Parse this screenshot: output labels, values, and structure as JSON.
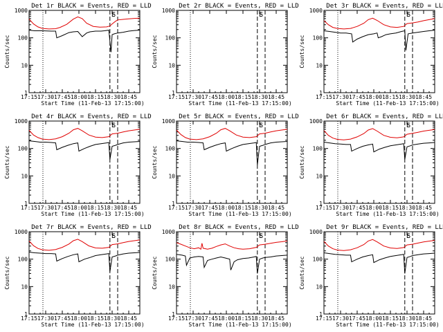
{
  "chart_data": {
    "type": "line",
    "xlabel": "Start Time (11-Feb-13 17:15:00)",
    "ylabel": "Counts/sec",
    "x_unit": "minutes after 17:15",
    "x_ticks": [
      0,
      15,
      30,
      45,
      60,
      75,
      90
    ],
    "x_tick_labels": [
      "17:15",
      "17:30",
      "17:45",
      "18:00",
      "18:15",
      "18:30",
      "18:45"
    ],
    "xlim": [
      0,
      100
    ],
    "y_scale": "log",
    "ylim": [
      1,
      1000
    ],
    "y_ticks": [
      1,
      10,
      100,
      1000
    ],
    "y_tick_labels": [
      "1",
      "10",
      "100",
      "1000"
    ],
    "line_colors": {
      "events": "#000000",
      "lld": "#e00000"
    },
    "markers": {
      "dotted_x": 12.5,
      "dashed_x": [
        73,
        80
      ],
      "labels": [
        "S",
        "E"
      ]
    },
    "panels": [
      {
        "title": "Det 1r BLACK = Events, RED = LLD",
        "series": [
          {
            "x": [
              0,
              5,
              8,
              12,
              20,
              24,
              25,
              30,
              36,
              40,
              44,
              48,
              52,
              55,
              60,
              65,
              68,
              72,
              74,
              75,
              77,
              80,
              85,
              90,
              95,
              100
            ],
            "y": [
              190,
              180,
              180,
              180,
              175,
              175,
              100,
              120,
              155,
              165,
              170,
              110,
              150,
              165,
              175,
              175,
              180,
              190,
              30,
              130,
              140,
              150,
              160,
              175,
              185,
              190
            ]
          },
          {
            "x": [
              0,
              4,
              8,
              12,
              18,
              24,
              28,
              34,
              40,
              44,
              48,
              52,
              58,
              64,
              70,
              73,
              75,
              78,
              80,
              85,
              90,
              95,
              100
            ],
            "y": [
              480,
              320,
              250,
              220,
              210,
              215,
              240,
              310,
              480,
              580,
              500,
              340,
              260,
              245,
              250,
              270,
              320,
              400,
              450,
              470,
              490,
              510,
              520
            ]
          }
        ]
      },
      {
        "title": "Det 2r BLACK = Events, RED = LLD",
        "series": [
          {
            "x": [],
            "y": []
          },
          {
            "x": [],
            "y": []
          }
        ]
      },
      {
        "title": "Det 3r BLACK = Events, RED = LLD",
        "series": [
          {
            "x": [
              0,
              5,
              10,
              15,
              20,
              25,
              26,
              30,
              35,
              40,
              45,
              48,
              49,
              52,
              56,
              60,
              65,
              70,
              73,
              74,
              76,
              80,
              85,
              90,
              95,
              100
            ],
            "y": [
              180,
              170,
              160,
              150,
              150,
              140,
              70,
              90,
              110,
              130,
              140,
              150,
              100,
              110,
              130,
              140,
              150,
              170,
              180,
              35,
              140,
              150,
              160,
              170,
              180,
              190
            ]
          },
          {
            "x": [
              0,
              4,
              8,
              12,
              18,
              24,
              30,
              36,
              40,
              44,
              48,
              54,
              60,
              66,
              72,
              75,
              80,
              85,
              90,
              95,
              100
            ],
            "y": [
              420,
              300,
              240,
              220,
              210,
              220,
              260,
              340,
              460,
              520,
              430,
              300,
              250,
              240,
              260,
              330,
              350,
              380,
              420,
              460,
              500
            ]
          }
        ]
      },
      {
        "title": "Det 4r BLACK = Events, RED = LLD",
        "series": [
          {
            "x": [
              0,
              5,
              10,
              15,
              20,
              24,
              25,
              30,
              35,
              40,
              44,
              45,
              50,
              55,
              60,
              65,
              70,
              72,
              73,
              75,
              78,
              80,
              85,
              90,
              95,
              100
            ],
            "y": [
              190,
              180,
              170,
              170,
              165,
              160,
              90,
              110,
              130,
              150,
              160,
              80,
              100,
              120,
              140,
              150,
              160,
              165,
              40,
              120,
              130,
              140,
              160,
              170,
              175,
              180
            ]
          },
          {
            "x": [
              0,
              4,
              8,
              12,
              18,
              24,
              30,
              36,
              40,
              44,
              48,
              54,
              60,
              66,
              72,
              75,
              80,
              85,
              90,
              95,
              100
            ],
            "y": [
              460,
              310,
              250,
              220,
              210,
              225,
              270,
              360,
              480,
              540,
              440,
              310,
              260,
              250,
              270,
              340,
              360,
              400,
              440,
              470,
              500
            ]
          }
        ]
      },
      {
        "title": "Det 5r BLACK = Events, RED = LLD",
        "series": [
          {
            "x": [
              0,
              5,
              10,
              15,
              20,
              24,
              25,
              30,
              35,
              40,
              44,
              45,
              50,
              55,
              60,
              65,
              70,
              72,
              73,
              75,
              78,
              80,
              85,
              90,
              95,
              100
            ],
            "y": [
              190,
              180,
              170,
              170,
              165,
              160,
              90,
              110,
              130,
              150,
              160,
              80,
              100,
              120,
              140,
              150,
              160,
              165,
              25,
              120,
              130,
              140,
              160,
              170,
              175,
              180
            ]
          },
          {
            "x": [
              0,
              4,
              8,
              12,
              18,
              24,
              30,
              36,
              40,
              44,
              48,
              54,
              60,
              66,
              72,
              75,
              80,
              85,
              90,
              95,
              100
            ],
            "y": [
              470,
              320,
              250,
              220,
              210,
              225,
              270,
              360,
              480,
              540,
              440,
              310,
              260,
              250,
              270,
              340,
              360,
              400,
              440,
              470,
              500
            ]
          }
        ]
      },
      {
        "title": "Det 6r BLACK = Events, RED = LLD",
        "series": [
          {
            "x": [
              0,
              5,
              10,
              15,
              20,
              24,
              25,
              30,
              35,
              40,
              44,
              45,
              50,
              55,
              60,
              65,
              70,
              72,
              73,
              75,
              78,
              80,
              85,
              90,
              95,
              100
            ],
            "y": [
              170,
              160,
              150,
              145,
              140,
              140,
              80,
              100,
              120,
              135,
              145,
              75,
              95,
              110,
              125,
              135,
              145,
              150,
              40,
              115,
              125,
              135,
              145,
              155,
              160,
              165
            ]
          },
          {
            "x": [
              0,
              4,
              8,
              12,
              18,
              24,
              30,
              36,
              40,
              44,
              48,
              54,
              60,
              66,
              72,
              75,
              80,
              85,
              90,
              95,
              100
            ],
            "y": [
              450,
              300,
              240,
              215,
              205,
              220,
              265,
              350,
              470,
              530,
              430,
              300,
              255,
              245,
              265,
              330,
              355,
              390,
              430,
              460,
              490
            ]
          }
        ]
      },
      {
        "title": "Det 7r BLACK = Events, RED = LLD",
        "series": [
          {
            "x": [
              0,
              5,
              10,
              15,
              20,
              24,
              25,
              30,
              35,
              40,
              44,
              45,
              50,
              55,
              60,
              65,
              70,
              72,
              73,
              75,
              78,
              80,
              85,
              90,
              95,
              100
            ],
            "y": [
              180,
              170,
              165,
              160,
              160,
              155,
              85,
              105,
              125,
              145,
              155,
              80,
              100,
              115,
              135,
              145,
              155,
              160,
              35,
              120,
              130,
              140,
              155,
              165,
              170,
              175
            ]
          },
          {
            "x": [
              0,
              4,
              8,
              12,
              18,
              24,
              30,
              36,
              40,
              44,
              48,
              54,
              60,
              66,
              72,
              75,
              80,
              85,
              90,
              95,
              100
            ],
            "y": [
              460,
              310,
              245,
              220,
              210,
              225,
              270,
              355,
              470,
              530,
              435,
              305,
              255,
              250,
              270,
              340,
              360,
              400,
              440,
              470,
              500
            ]
          }
        ]
      },
      {
        "title": "Det 8r BLACK = Events, RED = LLD",
        "series": [
          {
            "x": [
              0,
              5,
              8,
              9,
              12,
              16,
              20,
              24,
              25,
              28,
              32,
              36,
              40,
              44,
              48,
              49,
              52,
              55,
              60,
              65,
              70,
              72,
              73,
              75,
              78,
              80,
              85,
              90,
              95,
              100
            ],
            "y": [
              150,
              140,
              130,
              60,
              110,
              120,
              125,
              120,
              50,
              90,
              100,
              110,
              120,
              110,
              100,
              40,
              80,
              95,
              105,
              110,
              120,
              125,
              30,
              100,
              110,
              115,
              120,
              130,
              135,
              140
            ]
          },
          {
            "x": [
              0,
              4,
              8,
              12,
              16,
              20,
              22,
              23,
              24,
              28,
              32,
              36,
              40,
              44,
              48,
              52,
              56,
              60,
              66,
              72,
              75,
              80,
              85,
              90,
              95,
              100
            ],
            "y": [
              400,
              350,
              300,
              260,
              240,
              260,
              230,
              380,
              250,
              230,
              250,
              290,
              330,
              360,
              300,
              260,
              240,
              230,
              240,
              270,
              330,
              350,
              380,
              410,
              430,
              460
            ]
          }
        ]
      },
      {
        "title": "Det 9r BLACK = Events, RED = LLD",
        "series": [
          {
            "x": [
              0,
              5,
              10,
              15,
              20,
              24,
              25,
              30,
              35,
              40,
              44,
              45,
              50,
              55,
              60,
              65,
              70,
              72,
              73,
              75,
              78,
              80,
              85,
              90,
              95,
              100
            ],
            "y": [
              170,
              160,
              150,
              145,
              140,
              140,
              80,
              100,
              120,
              135,
              145,
              75,
              95,
              110,
              125,
              135,
              145,
              150,
              30,
              115,
              125,
              135,
              145,
              155,
              160,
              165
            ]
          },
          {
            "x": [
              0,
              4,
              8,
              12,
              18,
              24,
              30,
              36,
              40,
              44,
              48,
              54,
              60,
              66,
              72,
              75,
              80,
              85,
              90,
              95,
              100
            ],
            "y": [
              440,
              300,
              240,
              215,
              205,
              220,
              260,
              340,
              460,
              520,
              425,
              300,
              255,
              245,
              265,
              330,
              350,
              385,
              425,
              455,
              485
            ]
          }
        ]
      }
    ]
  }
}
